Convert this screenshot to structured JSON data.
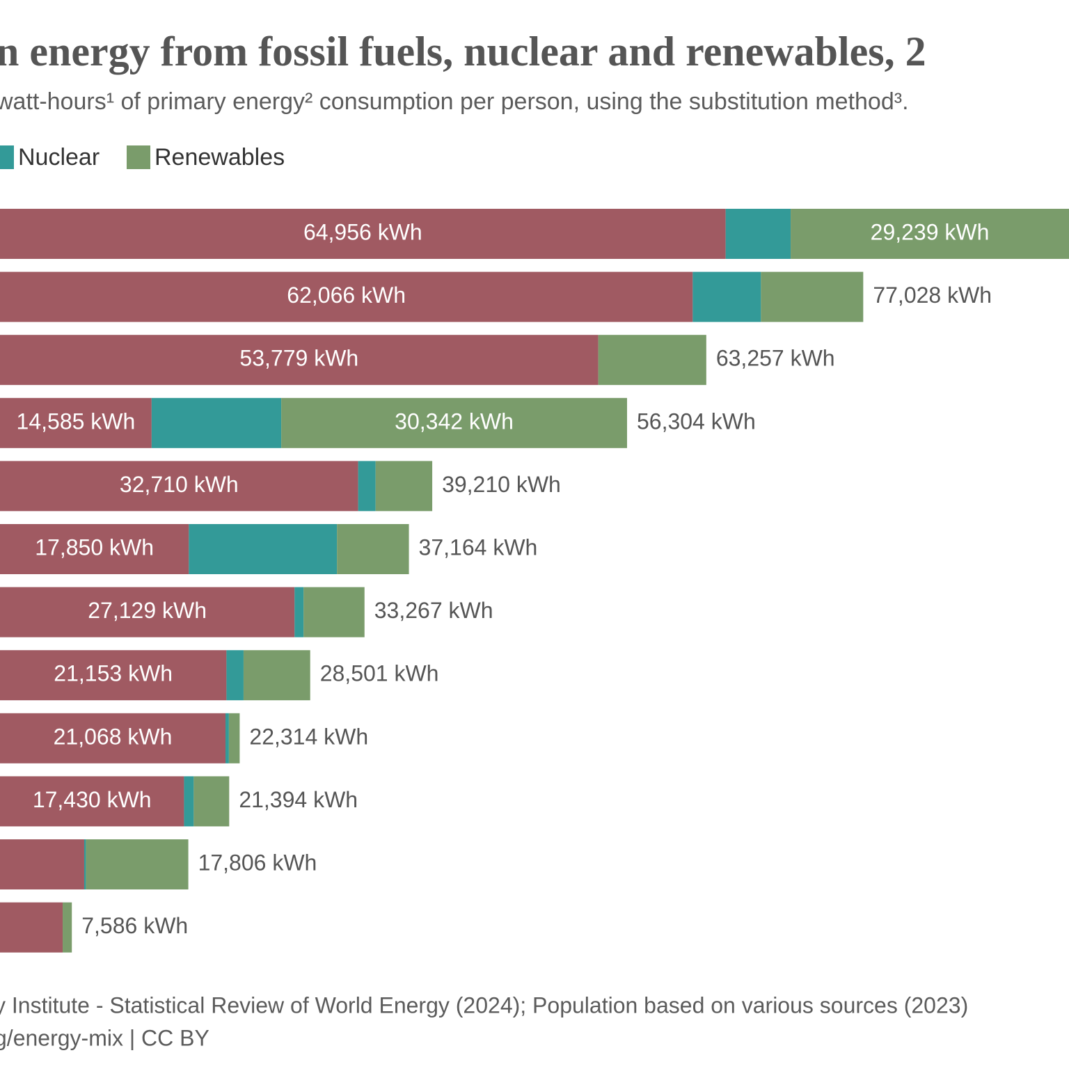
{
  "chart_data": {
    "type": "stacked-bar-horizontal",
    "title": "n energy from fossil fuels, nuclear and renewables, 2",
    "subtitle": "watt-hours¹ of primary energy² consumption per person, using the substitution method³.",
    "source": [
      "y Institute - Statistical Review of World Energy (2024); Population based on various sources (2023)",
      "g/energy-mix | CC BY"
    ],
    "series": [
      {
        "color": "#a05a62",
        "values": [
          64956,
          62066,
          53779,
          14585,
          32710,
          17850,
          27129,
          21153,
          21068,
          17430,
          8670,
          6780
        ],
        "value_labels": [
          "64,956 kWh",
          "62,066 kWh",
          "53,779 kWh",
          "14,585 kWh",
          "32,710 kWh",
          "17,850 kWh",
          "27,129 kWh",
          "21,153 kWh",
          "21,068 kWh",
          "17,430 kWh",
          null,
          null
        ]
      },
      {
        "name": "Nuclear",
        "color": "#339a98",
        "values": [
          5704,
          5985,
          0,
          11377,
          1530,
          13000,
          790,
          1500,
          300,
          850,
          150,
          0
        ],
        "value_labels": [
          null,
          null,
          null,
          null,
          null,
          null,
          null,
          null,
          null,
          null,
          null,
          null
        ]
      },
      {
        "name": "Renewables",
        "color": "#7a9c6b",
        "values": [
          29239,
          8977,
          9478,
          30342,
          4970,
          6314,
          5348,
          5848,
          946,
          3114,
          8986,
          806
        ],
        "value_labels": [
          "29,239 kWh",
          null,
          null,
          "30,342 kWh",
          null,
          null,
          null,
          null,
          null,
          null,
          null,
          null
        ]
      }
    ],
    "totals": [
      null,
      77028,
      63257,
      56304,
      39210,
      37164,
      33267,
      28501,
      22314,
      21394,
      17806,
      7586
    ],
    "total_labels": [
      null,
      "77,028 kWh",
      "63,257 kWh",
      "56,304 kWh",
      "39,210 kWh",
      "37,164 kWh",
      "33,267 kWh",
      "28,501 kWh",
      "22,314 kWh",
      "21,394 kWh",
      "17,806 kWh",
      "7,586 kWh"
    ]
  }
}
